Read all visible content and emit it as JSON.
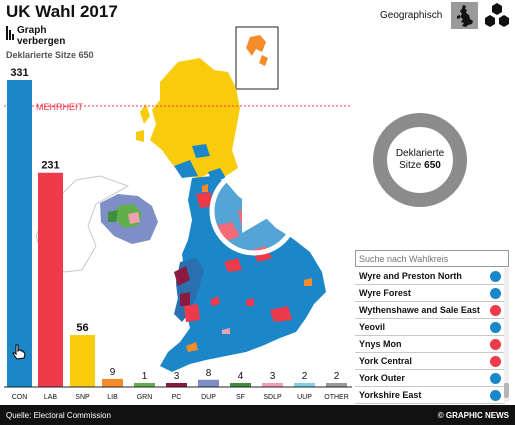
{
  "header": {
    "title": "UK Wahl 2017",
    "graph_toggle_label": "Graph verbergen",
    "declared_seats": "Deklarierte Sitze 650",
    "view_label": "Geographisch"
  },
  "majority_label": "MEHRHEIT",
  "chart_data": {
    "type": "bar",
    "categories": [
      "CON",
      "LAB",
      "SNP",
      "LIB",
      "GRN",
      "PC",
      "DUP",
      "SF",
      "SDLP",
      "UUP",
      "OTHER"
    ],
    "values": [
      331,
      231,
      56,
      9,
      1,
      3,
      8,
      4,
      3,
      2,
      2
    ],
    "colors": [
      "#1b86c8",
      "#ee3a4b",
      "#f8cc0c",
      "#f58c2c",
      "#5fb04a",
      "#8a1a3f",
      "#7e8ec6",
      "#3f8f3d",
      "#f1a1b0",
      "#7fd1e3",
      "#9a9a9a"
    ],
    "majority": 326
  },
  "donut": {
    "label_line1": "Deklarierte",
    "label_line2_prefix": "Sitze ",
    "label_line2_value": "650",
    "declared_fraction": 1.0
  },
  "search": {
    "placeholder": "Suche nach Wahlkreis"
  },
  "constituencies": [
    {
      "name": "Wyre and Preston North",
      "color": "#1b86c8"
    },
    {
      "name": "Wyre Forest",
      "color": "#1b86c8"
    },
    {
      "name": "Wythenshawe and Sale East",
      "color": "#ee3a4b"
    },
    {
      "name": "Yeovil",
      "color": "#1b86c8"
    },
    {
      "name": "Ynys Mon",
      "color": "#ee3a4b"
    },
    {
      "name": "York Central",
      "color": "#ee3a4b"
    },
    {
      "name": "York Outer",
      "color": "#1b86c8"
    },
    {
      "name": "Yorkshire East",
      "color": "#1b86c8"
    }
  ],
  "footer": {
    "source": "Quelle: Electoral Commission",
    "credit": "© GRAPHIC NEWS"
  },
  "icons": {
    "graph": "bar-graph-icon",
    "britain": "britain-map-icon",
    "hexagon": "hexagon-map-icon",
    "play": "play-icon",
    "cursor": "hand-cursor-icon"
  }
}
